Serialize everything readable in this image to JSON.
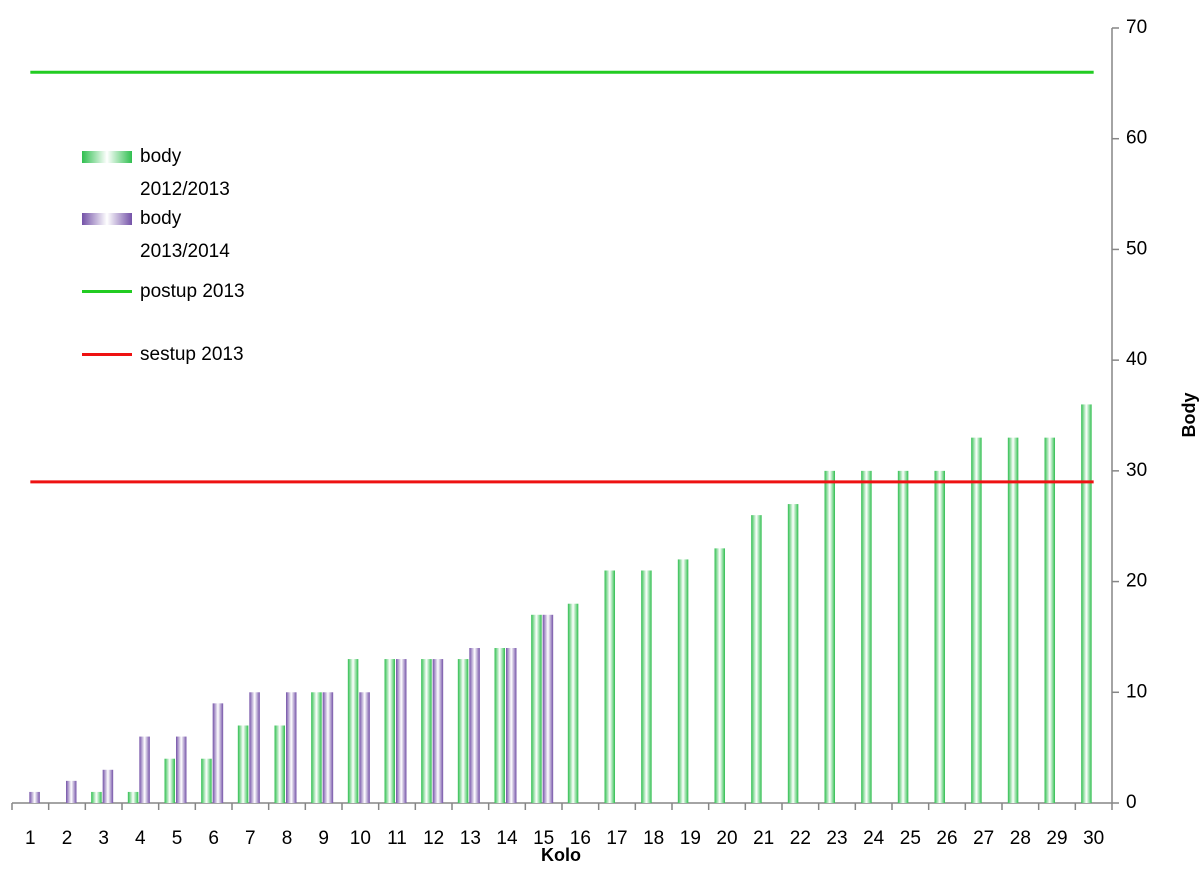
{
  "chart_data": {
    "type": "bar",
    "x_label": "Kolo",
    "y_label": "Body",
    "categories": [
      "1",
      "2",
      "3",
      "4",
      "5",
      "6",
      "7",
      "8",
      "9",
      "10",
      "11",
      "12",
      "13",
      "14",
      "15",
      "16",
      "17",
      "18",
      "19",
      "20",
      "21",
      "22",
      "23",
      "24",
      "25",
      "26",
      "27",
      "28",
      "29",
      "30"
    ],
    "series": [
      {
        "name": "body 2012/2013",
        "type": "bar",
        "color": "#2fbf4f",
        "values": [
          0,
          0,
          1,
          1,
          4,
          4,
          7,
          7,
          10,
          13,
          13,
          13,
          13,
          14,
          17,
          18,
          21,
          21,
          22,
          23,
          26,
          27,
          30,
          30,
          30,
          30,
          33,
          33,
          33,
          36
        ]
      },
      {
        "name": "body 2013/2014",
        "type": "bar",
        "color": "#7452a8",
        "values": [
          1,
          2,
          3,
          6,
          6,
          9,
          10,
          10,
          10,
          10,
          13,
          13,
          14,
          14,
          17,
          null,
          null,
          null,
          null,
          null,
          null,
          null,
          null,
          null,
          null,
          null,
          null,
          null,
          null,
          null
        ]
      },
      {
        "name": "postup 2013",
        "type": "line",
        "color": "#22cc22",
        "values": [
          66,
          66,
          66,
          66,
          66,
          66,
          66,
          66,
          66,
          66,
          66,
          66,
          66,
          66,
          66,
          66,
          66,
          66,
          66,
          66,
          66,
          66,
          66,
          66,
          66,
          66,
          66,
          66,
          66,
          66
        ]
      },
      {
        "name": "sestup 2013",
        "type": "line",
        "color": "#ee1111",
        "values": [
          29,
          29,
          29,
          29,
          29,
          29,
          29,
          29,
          29,
          29,
          29,
          29,
          29,
          29,
          29,
          29,
          29,
          29,
          29,
          29,
          29,
          29,
          29,
          29,
          29,
          29,
          29,
          29,
          29,
          29
        ]
      }
    ],
    "ylim": [
      0,
      70
    ],
    "yticks": [
      0,
      10,
      20,
      30,
      40,
      50,
      60,
      70
    ],
    "y_axis_side": "right",
    "legend": "upper left"
  }
}
